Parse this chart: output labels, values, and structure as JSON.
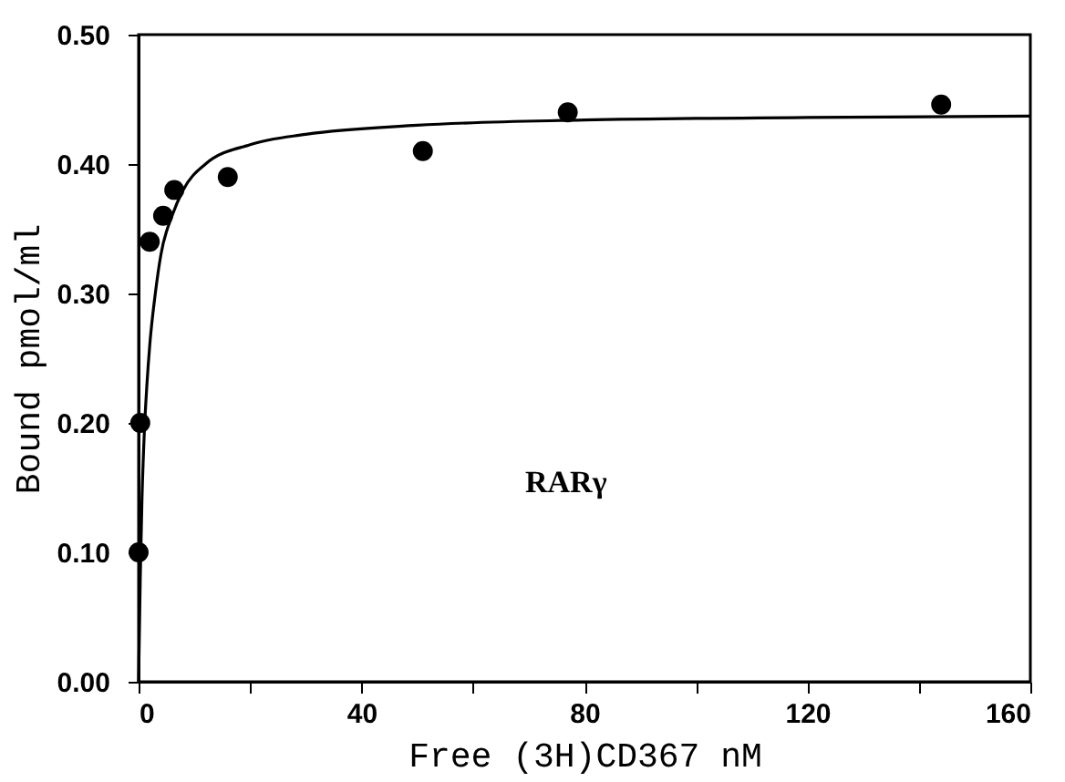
{
  "chart_data": {
    "type": "scatter",
    "xlabel": "Free (3H)CD367 nM",
    "ylabel": "Bound pmol/ml",
    "annotations": [
      "RARγ"
    ],
    "xlim": [
      0,
      160
    ],
    "ylim": [
      0,
      0.5
    ],
    "xticks": [
      0,
      {
        "value": 20,
        "label": null
      },
      40,
      {
        "value": 60,
        "label": null
      },
      80,
      {
        "value": 100,
        "label": null
      },
      120,
      {
        "value": 140,
        "label": null
      },
      160
    ],
    "yticks": [
      {
        "value": 0,
        "label": "0.00"
      },
      {
        "value": 0.1,
        "label": "0.10"
      },
      {
        "value": 0.2,
        "label": "0.20"
      },
      {
        "value": 0.3,
        "label": "0.30"
      },
      {
        "value": 0.4,
        "label": "0.40"
      },
      {
        "value": 0.5,
        "label": "0.50"
      }
    ],
    "grid": false,
    "series": [
      {
        "marker": "circle",
        "color": "#000000",
        "x": [
          0,
          0.3,
          2,
          4.4,
          6.4,
          16,
          51,
          77,
          144
        ],
        "values": [
          0.1,
          0.2,
          0.34,
          0.36,
          0.38,
          0.39,
          0.41,
          0.44,
          0.446
        ]
      },
      {
        "type": "line",
        "color": "#000000",
        "line_style": "solid",
        "x": [
          0,
          0.3,
          0.6,
          1,
          1.5,
          2,
          3,
          4,
          6,
          8,
          12,
          20,
          30,
          50,
          80,
          120,
          160
        ],
        "values": [
          0,
          0.08,
          0.14,
          0.19,
          0.23,
          0.26,
          0.3,
          0.33,
          0.36,
          0.38,
          0.4,
          0.415,
          0.423,
          0.43,
          0.434,
          0.436,
          0.437
        ]
      }
    ]
  }
}
